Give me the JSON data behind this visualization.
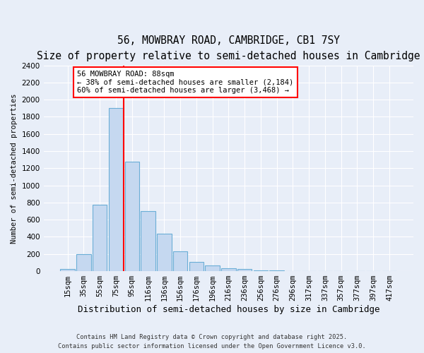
{
  "title1": "56, MOWBRAY ROAD, CAMBRIDGE, CB1 7SY",
  "title2": "Size of property relative to semi-detached houses in Cambridge",
  "xlabel": "Distribution of semi-detached houses by size in Cambridge",
  "ylabel": "Number of semi-detached properties",
  "bar_labels": [
    "15sqm",
    "35sqm",
    "55sqm",
    "75sqm",
    "95sqm",
    "116sqm",
    "136sqm",
    "156sqm",
    "176sqm",
    "196sqm",
    "216sqm",
    "236sqm",
    "256sqm",
    "276sqm",
    "296sqm",
    "317sqm",
    "337sqm",
    "357sqm",
    "377sqm",
    "397sqm",
    "417sqm"
  ],
  "bar_values": [
    25,
    200,
    775,
    1900,
    1275,
    700,
    435,
    230,
    110,
    65,
    35,
    25,
    5,
    5,
    0,
    0,
    0,
    0,
    0,
    0,
    0
  ],
  "bar_color": "#c5d8f0",
  "bar_edge_color": "#6aaed6",
  "background_color": "#e8eef8",
  "grid_color": "#ffffff",
  "red_line_index": 4,
  "annotation_title": "56 MOWBRAY ROAD: 88sqm",
  "annotation_line1": "← 38% of semi-detached houses are smaller (2,184)",
  "annotation_line2": "60% of semi-detached houses are larger (3,468) →",
  "footer1": "Contains HM Land Registry data © Crown copyright and database right 2025.",
  "footer2": "Contains public sector information licensed under the Open Government Licence v3.0.",
  "ylim": [
    0,
    2400
  ],
  "yticks": [
    0,
    200,
    400,
    600,
    800,
    1000,
    1200,
    1400,
    1600,
    1800,
    2000,
    2200,
    2400
  ],
  "title1_fontsize": 10.5,
  "title2_fontsize": 9.5,
  "xlabel_fontsize": 9,
  "ylabel_fontsize": 7.5,
  "tick_fontsize": 7.5,
  "annotation_fontsize": 7.5,
  "footer_fontsize": 6.2
}
